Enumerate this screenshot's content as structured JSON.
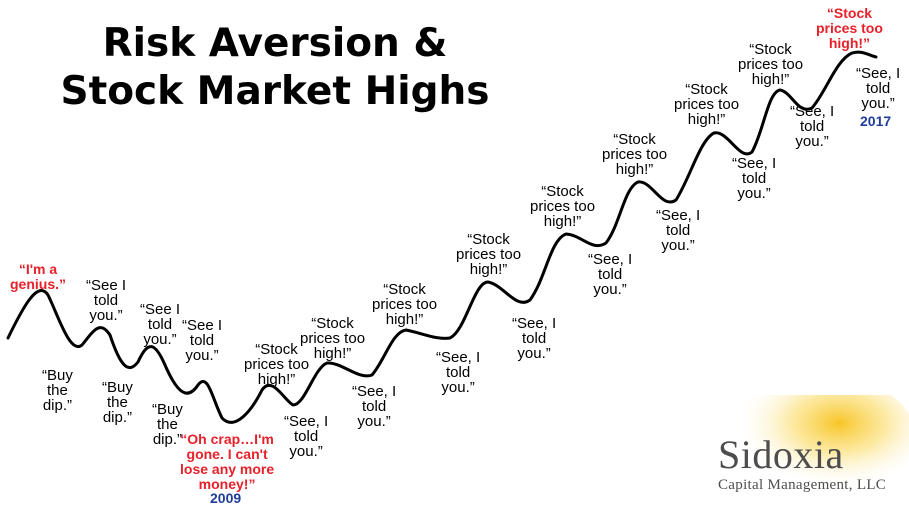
{
  "title": {
    "line1": "Risk Aversion &",
    "line2": "Stock Market Highs"
  },
  "years": {
    "start": "2009",
    "end": "2017"
  },
  "quotes": {
    "genius": "“I'm a\ngenius.”",
    "buy1": "“Buy\nthe\ndip.”",
    "seeitold1": "“See I\ntold\nyou.”",
    "buy2": "“Buy\nthe\ndip.”",
    "seeitold2": "“See I\ntold\nyou.”",
    "buy3": "“Buy\nthe\ndip.”",
    "seeitold3": "“See I\ntold\nyou.”",
    "ohcrap": "“Oh crap…I'm\ngone. I can't\nlose any more\nmoney!”",
    "high1": "“Stock\nprices too\nhigh!”",
    "see1": "“See, I\ntold\nyou.”",
    "high2": "“Stock\nprices too\nhigh!”",
    "see2": "“See, I\ntold\nyou.”",
    "high3": "“Stock\nprices too\nhigh!”",
    "see3": "“See, I\ntold\nyou.”",
    "high4": "“Stock\nprices too\nhigh!”",
    "see4": "“See, I\ntold\nyou.”",
    "high5": "“Stock\nprices too\nhigh!”",
    "see5": "“See, I\ntold\nyou.”",
    "high6": "“Stock\nprices too\nhigh!”",
    "see6": "“See, I\ntold\nyou.”",
    "high7": "“Stock\nprices too\nhigh!”",
    "see7": "“See, I\ntold\nyou.”",
    "high8": "“Stock\nprices too\nhigh!”",
    "see8": "“See, I\ntold\nyou.”",
    "high9": "“Stock\nprices too\nhigh!”",
    "see9": "“See, I\ntold\nyou.”"
  },
  "logo": {
    "name": "Sidoxia",
    "sub": "Capital Management, LLC"
  },
  "colors": {
    "line": "#000000",
    "red": "#e8202a",
    "blue": "#1f3c9a",
    "logo_sun": "#f7c21a"
  }
}
